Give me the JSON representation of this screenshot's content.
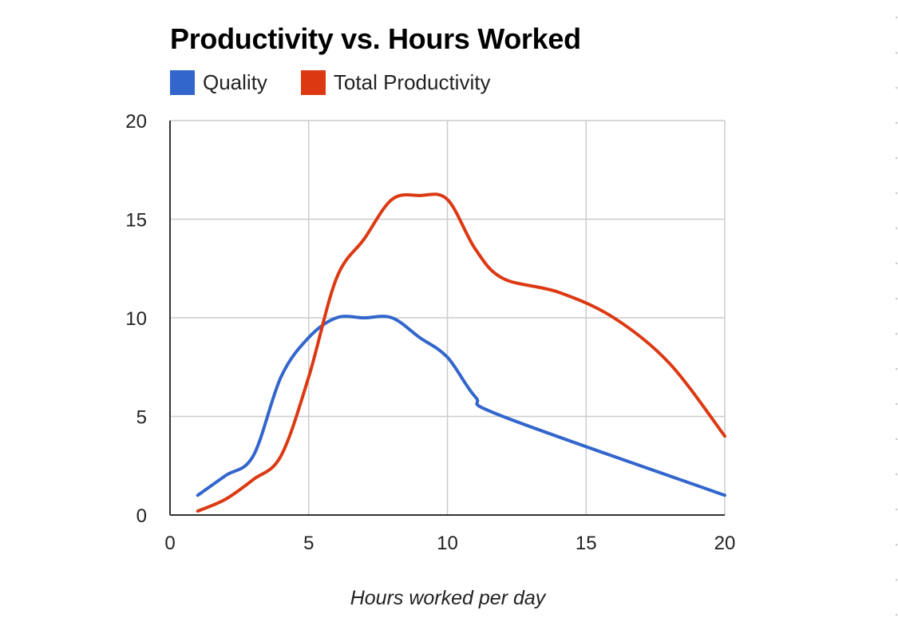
{
  "chart_data": {
    "type": "line",
    "title": "Productivity vs. Hours Worked",
    "xlabel": "Hours worked per day",
    "ylabel": "",
    "xlim": [
      0,
      20
    ],
    "ylim": [
      0,
      20
    ],
    "x_ticks": [
      "0",
      "5",
      "10",
      "15",
      "20"
    ],
    "y_ticks": [
      "0",
      "5",
      "10",
      "15",
      "20"
    ],
    "grid": true,
    "legend_position": "top",
    "series": [
      {
        "name": "Quality",
        "color": "#3366CC",
        "x": [
          1,
          2,
          3,
          4,
          5,
          6,
          7,
          8,
          9,
          10,
          11,
          12,
          20
        ],
        "y": [
          1,
          2,
          3,
          7,
          9,
          10,
          10,
          10,
          9,
          8,
          6,
          5,
          1
        ]
      },
      {
        "name": "Total Productivity",
        "color": "#DC3912",
        "x": [
          1,
          2,
          3,
          4,
          5,
          6,
          7,
          8,
          9,
          10,
          11,
          12,
          14,
          16,
          18,
          20
        ],
        "y": [
          0.2,
          0.8,
          1.8,
          3,
          7,
          12,
          14,
          16,
          16.2,
          16,
          13.5,
          12,
          11.3,
          10,
          7.7,
          4
        ]
      }
    ]
  }
}
